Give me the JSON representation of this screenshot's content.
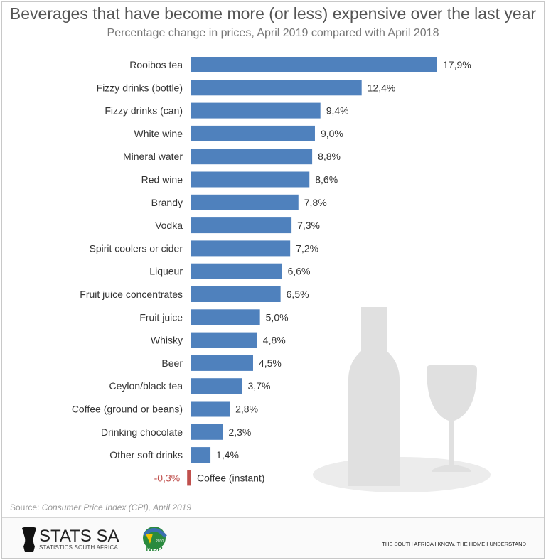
{
  "chart_data": {
    "type": "bar",
    "orientation": "horizontal",
    "title": "Beverages that have become more (or less) expensive over the last year",
    "subtitle": "Percentage change in prices, April 2019 compared with April 2018",
    "categories": [
      "Rooibos tea",
      "Fizzy drinks (bottle)",
      "Fizzy drinks (can)",
      "White wine",
      "Mineral water",
      "Red wine",
      "Brandy",
      "Vodka",
      "Spirit coolers or cider",
      "Liqueur",
      "Fruit juice concentrates",
      "Fruit juice",
      "Whisky",
      "Beer",
      "Ceylon/black tea",
      "Coffee (ground or beans)",
      "Drinking chocolate",
      "Other soft drinks",
      "Coffee (instant)"
    ],
    "values": [
      17.9,
      12.4,
      9.4,
      9.0,
      8.8,
      8.6,
      7.8,
      7.3,
      7.2,
      6.6,
      6.5,
      5.0,
      4.8,
      4.5,
      3.7,
      2.8,
      2.3,
      1.4,
      -0.3
    ],
    "labels": [
      "17,9%",
      "12,4%",
      "9,4%",
      "9,0%",
      "8,8%",
      "8,6%",
      "7,8%",
      "7,3%",
      "7,2%",
      "6,6%",
      "6,5%",
      "5,0%",
      "4,8%",
      "4,5%",
      "3,7%",
      "2,8%",
      "2,3%",
      "1,4%",
      "-0,3%"
    ],
    "colors": {
      "positive": "#4f81bd",
      "negative": "#c0504d"
    },
    "grid": false
  },
  "source": {
    "prefix": "Source: ",
    "text": "Consumer Price Index (CPI), April 2019"
  },
  "footer": {
    "logo": "STATS SA",
    "logo_sub": "STATISTICS SOUTH AFRICA",
    "ndp": "NDP",
    "ndp_year": "2030",
    "tagline": "THE SOUTH AFRICA I KNOW, THE HOME I UNDERSTAND"
  }
}
